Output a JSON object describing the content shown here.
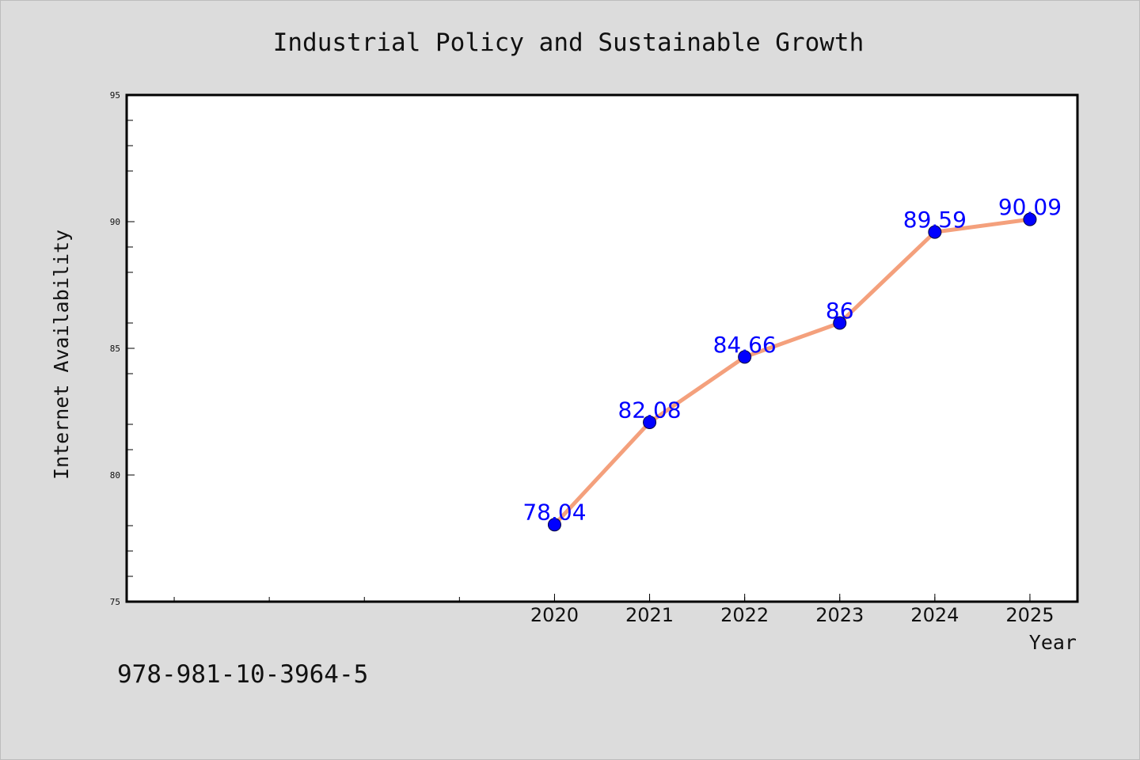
{
  "isbn": "978-981-10-3964-5",
  "chart_data": {
    "type": "line",
    "title": "Industrial Policy and Sustainable Growth",
    "xlabel": "Year",
    "ylabel": "Internet Availability",
    "x": [
      2020,
      2021,
      2022,
      2023,
      2024,
      2025
    ],
    "values": [
      78.04,
      82.08,
      84.66,
      86,
      89.59,
      90.09
    ],
    "data_labels": [
      "78.04",
      "82.08",
      "84.66",
      "86",
      "89.59",
      "90.09"
    ],
    "xlim": [
      2015.5,
      2025.5
    ],
    "ylim": [
      75,
      95
    ],
    "yticks": [
      75,
      80,
      85,
      90,
      95
    ],
    "xticks": [
      2020,
      2021,
      2022,
      2023,
      2024,
      2025
    ],
    "grid": false,
    "colors": {
      "line": "#f4a07c",
      "marker": "#0000ff",
      "label": "#0000ff",
      "plot_bg": "#ffffff",
      "page_bg": "#dcdcdc"
    }
  }
}
